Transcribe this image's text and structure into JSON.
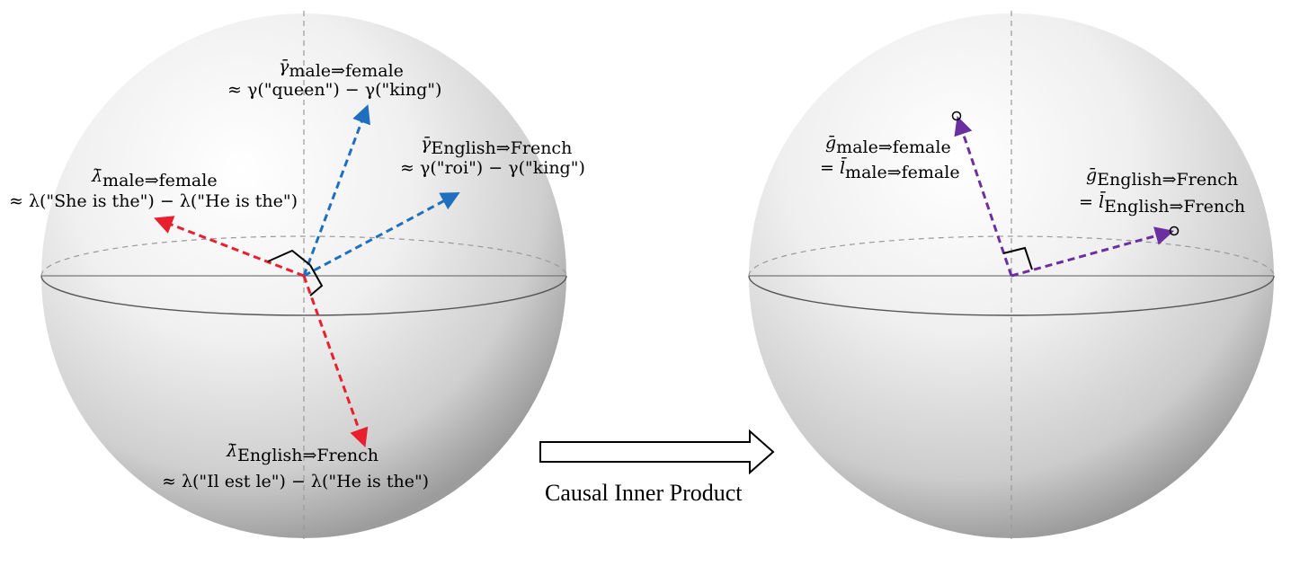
{
  "left_sphere": {
    "labels": {
      "gamma_gender": {
        "symbol": "γ̄",
        "subscript": "male⇒female",
        "approx": "≈ γ(\"queen\") − γ(\"king\")"
      },
      "gamma_language": {
        "symbol": "γ̄",
        "subscript": "English⇒French",
        "approx": "≈ γ(\"roi\") − γ(\"king\")"
      },
      "lambda_gender": {
        "symbol": "λ̄",
        "subscript": "male⇒female",
        "approx": "≈ λ(\"She is the\") − λ(\"He is the\")"
      },
      "lambda_language": {
        "symbol": "λ̄",
        "subscript": "English⇒French",
        "approx": "≈ λ(\"Il est le\") − λ(\"He is the\")"
      }
    }
  },
  "transform": {
    "caption": "Causal Inner Product"
  },
  "right_sphere": {
    "labels": {
      "g_gender": {
        "symbol": "ḡ",
        "subscript": "male⇒female",
        "eq_symbol": "= l̄",
        "eq_subscript": "male⇒female"
      },
      "g_language": {
        "symbol": "ḡ",
        "subscript": "English⇒French",
        "eq_symbol": "= l̄",
        "eq_subscript": "English⇒French"
      }
    }
  },
  "colors": {
    "gamma_arrows": "#1f6fbf",
    "lambda_arrows": "#e8202e",
    "g_arrows": "#6b2fa0",
    "sphere_edge": "#9a9a9a",
    "axis_dash": "#9a9a9a"
  }
}
